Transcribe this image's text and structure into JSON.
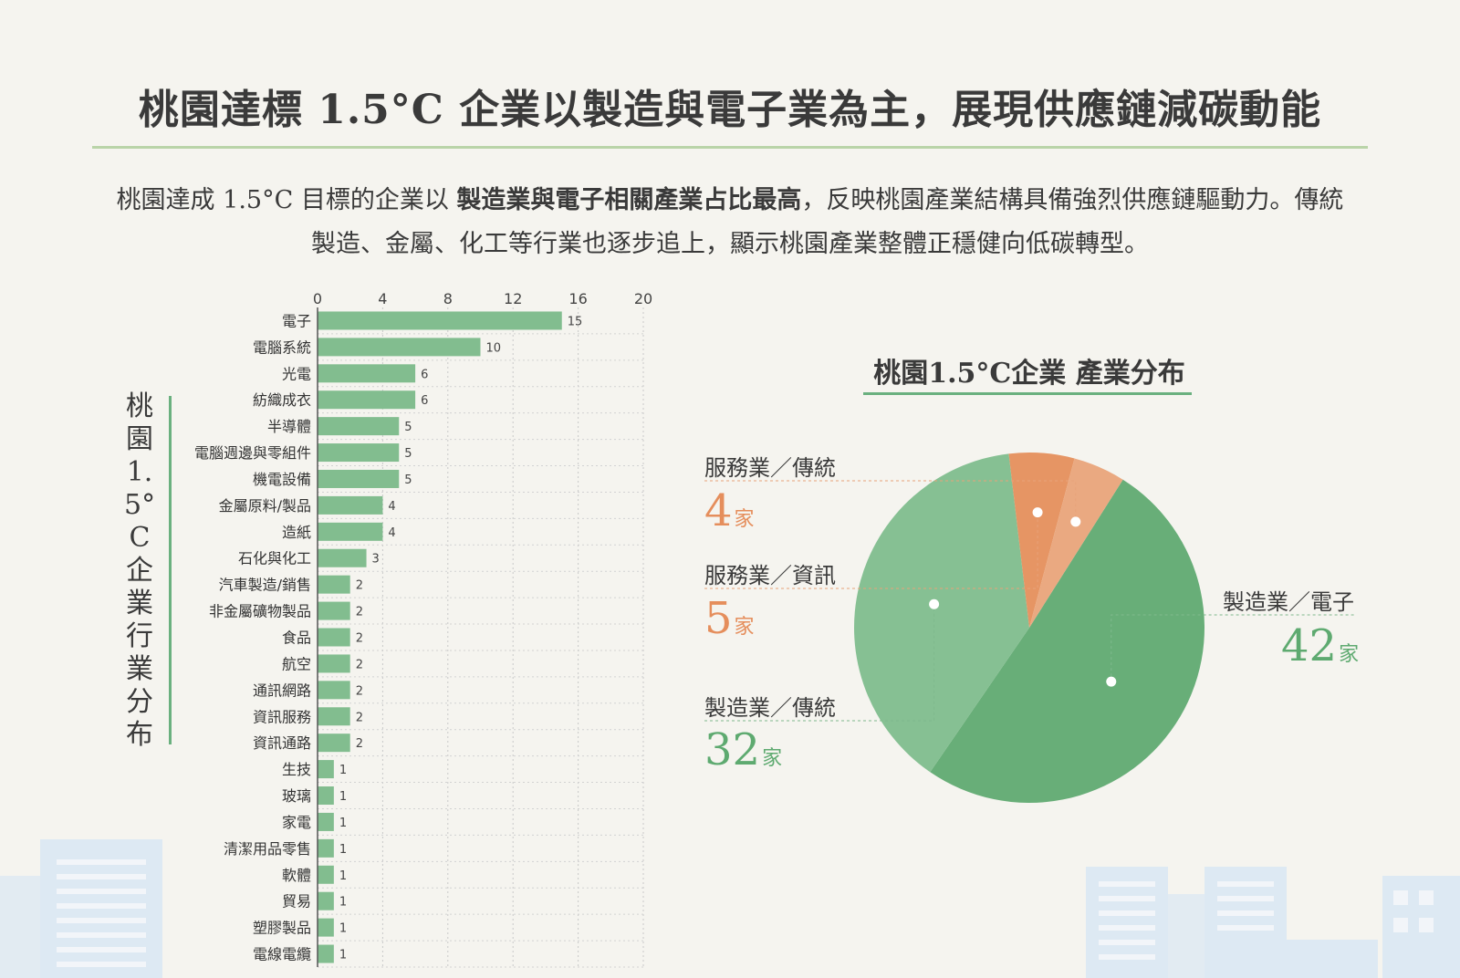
{
  "title": "桃園達標 1.5°C 企業以製造與電子業為主，展現供應鏈減碳動能",
  "intro": {
    "part1": "桃園達成 1.5°C 目標的企業以 ",
    "bold": "製造業與電子相關產業占比最高",
    "part2": "，反映桃園產業結構具備強烈供應鏈驅動力。傳統製造、金屬、化工等行業也逐步追上，顯示桃園產業整體正穩健向低碳轉型。"
  },
  "colors": {
    "bar": "#82bd8f",
    "pie_manufacturing_electronic": "#68ae78",
    "pie_manufacturing_traditional": "#86c093",
    "pie_service_it": "#e69564",
    "pie_service_traditional": "#eaa981",
    "count_green": "#5eaa70",
    "count_orange": "#e58e5c"
  },
  "chart_data": [
    {
      "type": "bar",
      "orientation": "horizontal",
      "title": "桃園1.5°C企業行業分布",
      "categories": [
        "電子",
        "電腦系統",
        "光電",
        "紡織成衣",
        "半導體",
        "電腦週邊與零組件",
        "機電設備",
        "金屬原料/製品",
        "造紙",
        "石化與化工",
        "汽車製造/銷售",
        "非金屬礦物製品",
        "食品",
        "航空",
        "通訊網路",
        "資訊服務",
        "資訊通路",
        "生技",
        "玻璃",
        "家電",
        "清潔用品零售",
        "軟體",
        "貿易",
        "塑膠製品",
        "電線電纜"
      ],
      "values": [
        15,
        10,
        6,
        6,
        5,
        5,
        5,
        4,
        4,
        3,
        2,
        2,
        2,
        2,
        2,
        2,
        2,
        1,
        1,
        1,
        1,
        1,
        1,
        1,
        1
      ],
      "xlim": [
        0,
        20
      ],
      "xticks": [
        0,
        4,
        8,
        12,
        16,
        20
      ],
      "grid": true
    },
    {
      "type": "pie",
      "title": "桃園1.5°C企業 產業分布",
      "slices": [
        {
          "label": "製造業／電子",
          "value": 42,
          "unit": "家",
          "color_key": "pie_manufacturing_electronic",
          "count_color_key": "count_green"
        },
        {
          "label": "製造業／傳統",
          "value": 32,
          "unit": "家",
          "color_key": "pie_manufacturing_traditional",
          "count_color_key": "count_green"
        },
        {
          "label": "服務業／資訊",
          "value": 5,
          "unit": "家",
          "color_key": "pie_service_it",
          "count_color_key": "count_orange"
        },
        {
          "label": "服務業／傳統",
          "value": 4,
          "unit": "家",
          "color_key": "pie_service_traditional",
          "count_color_key": "count_orange"
        }
      ]
    }
  ]
}
